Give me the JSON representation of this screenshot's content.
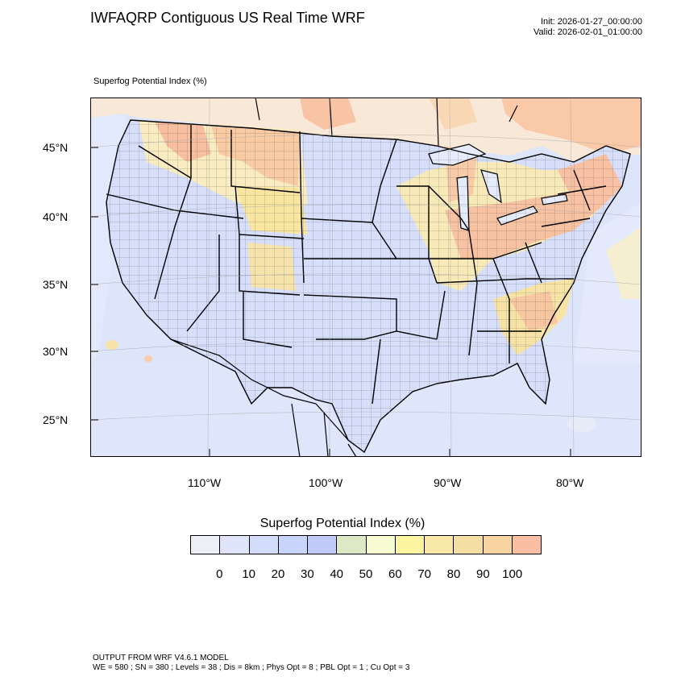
{
  "header": {
    "title": "IWFAQRP Contiguous US Real Time WRF",
    "init": "Init: 2026-01-27_00:00:00",
    "valid": "Valid: 2026-02-01_01:00:00"
  },
  "map": {
    "subtitle": "Superfog Potential Index   (%)",
    "lat_labels": [
      "45°N",
      "40°N",
      "35°N",
      "30°N",
      "25°N"
    ],
    "lon_labels": [
      "110°W",
      "100°W",
      "90°W",
      "80°W"
    ]
  },
  "colorbar": {
    "title": "Superfog Potential Index  (%)",
    "colors": [
      "#eef0f5",
      "#dee4fa",
      "#d2dcfa",
      "#c8d4fa",
      "#c2cafa",
      "#dde9c5",
      "#f7fbd2",
      "#fbf5a2",
      "#f9e9a8",
      "#f6dfa2",
      "#f9d4a3",
      "#f9bfa3"
    ],
    "ticks": [
      "0",
      "10",
      "20",
      "30",
      "40",
      "50",
      "60",
      "70",
      "80",
      "90",
      "100"
    ]
  },
  "footer": {
    "line1": "OUTPUT FROM WRF V4.6.1 MODEL",
    "line2": "WE = 580 ; SN = 380 ; Levels = 38 ; Dis = 8km ; Phys Opt = 8 ; PBL Opt = 1 ; Cu Opt = 3"
  }
}
